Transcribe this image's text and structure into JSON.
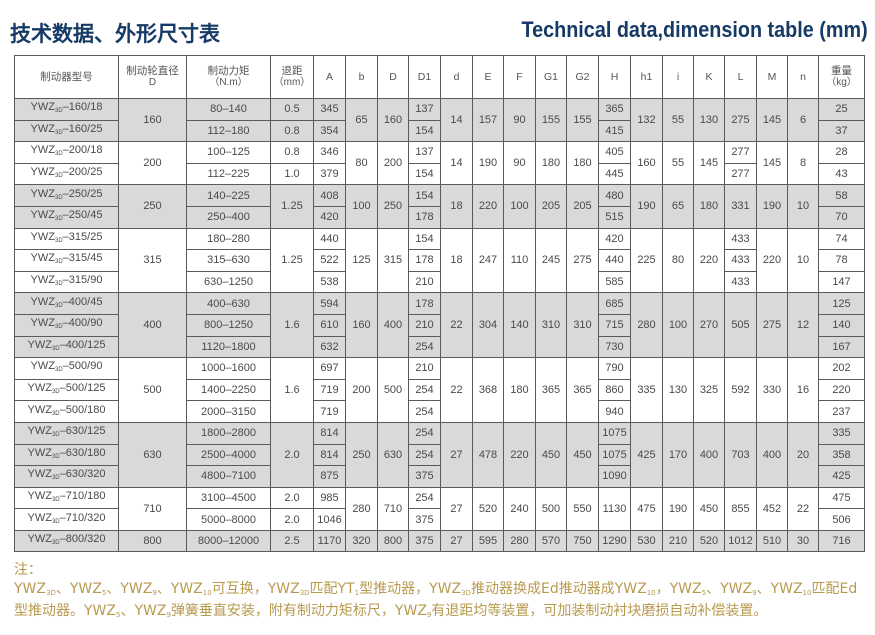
{
  "header": {
    "title_cn": "技术数据、外形尺寸表",
    "title_en": "Technical data,dimension table (mm)"
  },
  "table": {
    "columns": [
      {
        "key": "model",
        "label": "制动器型号",
        "label2": ""
      },
      {
        "key": "dia",
        "label": "制动轮直径",
        "label2": "D"
      },
      {
        "key": "torque",
        "label": "制动力矩",
        "label2": "（N.m）"
      },
      {
        "key": "gap",
        "label": "退距",
        "label2": "（mm）"
      },
      {
        "key": "A",
        "label": "A",
        "label2": ""
      },
      {
        "key": "b",
        "label": "b",
        "label2": ""
      },
      {
        "key": "D",
        "label": "D",
        "label2": ""
      },
      {
        "key": "D1",
        "label": "D1",
        "label2": ""
      },
      {
        "key": "d",
        "label": "d",
        "label2": ""
      },
      {
        "key": "E",
        "label": "E",
        "label2": ""
      },
      {
        "key": "F",
        "label": "F",
        "label2": ""
      },
      {
        "key": "G1",
        "label": "G1",
        "label2": ""
      },
      {
        "key": "G2",
        "label": "G2",
        "label2": ""
      },
      {
        "key": "H",
        "label": "H",
        "label2": ""
      },
      {
        "key": "h1",
        "label": "h1",
        "label2": ""
      },
      {
        "key": "i",
        "label": "i",
        "label2": ""
      },
      {
        "key": "K",
        "label": "K",
        "label2": ""
      },
      {
        "key": "L",
        "label": "L",
        "label2": ""
      },
      {
        "key": "M",
        "label": "M",
        "label2": ""
      },
      {
        "key": "n",
        "label": "n",
        "label2": ""
      },
      {
        "key": "wt",
        "label": "重量",
        "label2": "（kg）"
      }
    ],
    "series": {
      "name": "YWZ",
      "sub": "3D"
    },
    "shade_color": "#d9d9d9",
    "groups": [
      {
        "shaded": true,
        "model": [
          "–160/18",
          "–160/25"
        ],
        "dia": "160",
        "torque": [
          "80–140",
          "112–180"
        ],
        "gap": [
          "0.5",
          "0.8"
        ],
        "A": [
          "345",
          "354"
        ],
        "b": "65",
        "D": "160",
        "D1": [
          "137",
          "154"
        ],
        "d": "14",
        "E": "157",
        "F": "90",
        "G1": "155",
        "G2": "155",
        "H": [
          "365",
          "415"
        ],
        "h1": "132",
        "i": "55",
        "K": "130",
        "L": "275",
        "M": "145",
        "n": "6",
        "wt": [
          "25",
          "37"
        ]
      },
      {
        "shaded": false,
        "model": [
          "–200/18",
          "–200/25"
        ],
        "dia": "200",
        "torque": [
          "100–125",
          "112–225"
        ],
        "gap": [
          "0.8",
          "1.0"
        ],
        "A": [
          "346",
          "379"
        ],
        "b": "80",
        "D": "200",
        "D1": [
          "137",
          "154"
        ],
        "d": "14",
        "E": "190",
        "F": "90",
        "G1": "180",
        "G2": "180",
        "H": [
          "405",
          "445"
        ],
        "h1": "160",
        "i": "55",
        "K": "145",
        "L": [
          "277",
          "277"
        ],
        "M": "145",
        "n": "8",
        "wt": [
          "28",
          "43"
        ]
      },
      {
        "shaded": true,
        "model": [
          "–250/25",
          "–250/45"
        ],
        "dia": "250",
        "torque": [
          "140–225",
          "250–400"
        ],
        "gap": "1.25",
        "A": [
          "408",
          "420"
        ],
        "b": "100",
        "D": "250",
        "D1": [
          "154",
          "178"
        ],
        "d": "18",
        "E": "220",
        "F": "100",
        "G1": "205",
        "G2": "205",
        "H": [
          "480",
          "515"
        ],
        "h1": "190",
        "i": "65",
        "K": "180",
        "L": "331",
        "M": "190",
        "n": "10",
        "wt": [
          "58",
          "70"
        ]
      },
      {
        "shaded": false,
        "model": [
          "–315/25",
          "–315/45",
          "–315/90"
        ],
        "dia": "315",
        "torque": [
          "180–280",
          "315–630",
          "630–1250"
        ],
        "gap": "1.25",
        "A": [
          "440",
          "522",
          "538"
        ],
        "b": "125",
        "D": "315",
        "D1": [
          "154",
          "178",
          "210"
        ],
        "d": "18",
        "E": "247",
        "F": "110",
        "G1": "245",
        "G2": "275",
        "H": [
          "420",
          "440",
          "585"
        ],
        "h1": "225",
        "i": "80",
        "K": "220",
        "L": [
          "433",
          "433",
          "433"
        ],
        "M": "220",
        "n": "10",
        "wt": [
          "74",
          "78",
          "147"
        ]
      },
      {
        "shaded": true,
        "model": [
          "–400/45",
          "–400/90",
          "–400/125"
        ],
        "dia": "400",
        "torque": [
          "400–630",
          "800–1250",
          "1120–1800"
        ],
        "gap": "1.6",
        "A": [
          "594",
          "610",
          "632"
        ],
        "b": "160",
        "D": "400",
        "D1": [
          "178",
          "210",
          "254"
        ],
        "d": "22",
        "E": "304",
        "F": "140",
        "G1": "310",
        "G2": "310",
        "H": [
          "685",
          "715",
          "730"
        ],
        "h1": "280",
        "i": "100",
        "K": "270",
        "L": "505",
        "M": "275",
        "n": "12",
        "wt": [
          "125",
          "140",
          "167"
        ]
      },
      {
        "shaded": false,
        "model": [
          "–500/90",
          "–500/125",
          "–500/180"
        ],
        "dia": "500",
        "torque": [
          "1000–1600",
          "1400–2250",
          "2000–3150"
        ],
        "gap": "1.6",
        "A": [
          "697",
          "719",
          "719"
        ],
        "b": "200",
        "D": "500",
        "D1": [
          "210",
          "254",
          "254"
        ],
        "d": "22",
        "E": "368",
        "F": "180",
        "G1": "365",
        "G2": "365",
        "H": [
          "790",
          "860",
          "940"
        ],
        "h1": "335",
        "i": "130",
        "K": "325",
        "L": "592",
        "M": "330",
        "n": "16",
        "wt": [
          "202",
          "220",
          "237"
        ]
      },
      {
        "shaded": true,
        "model": [
          "–630/125",
          "–630/180",
          "–630/320"
        ],
        "dia": "630",
        "torque": [
          "1800–2800",
          "2500–4000",
          "4800–7100"
        ],
        "gap": "2.0",
        "A": [
          "814",
          "814",
          "875"
        ],
        "b": "250",
        "D": "630",
        "D1": [
          "254",
          "254",
          "375"
        ],
        "d": "27",
        "E": "478",
        "F": "220",
        "G1": "450",
        "G2": "450",
        "H": [
          "1075",
          "1075",
          "1090"
        ],
        "h1": "425",
        "i": "170",
        "K": "400",
        "L": "703",
        "M": "400",
        "n": "20",
        "wt": [
          "335",
          "358",
          "425"
        ]
      },
      {
        "shaded": false,
        "model": [
          "–710/180",
          "–710/320"
        ],
        "dia": "710",
        "torque": [
          "3100–4500",
          "5000–8000"
        ],
        "gap": [
          "2.0",
          "2.0"
        ],
        "A": [
          "985",
          "1046"
        ],
        "b": "280",
        "D": "710",
        "D1": [
          "254",
          "375"
        ],
        "d": "27",
        "E": "520",
        "F": "240",
        "G1": "500",
        "G2": "550",
        "H": "1130",
        "h1": "475",
        "i": "190",
        "K": "450",
        "L": "855",
        "M": "452",
        "n": "22",
        "wt": [
          "475",
          "506"
        ]
      },
      {
        "shaded": true,
        "model": [
          "–800/320"
        ],
        "dia": "800",
        "torque": [
          "8000–12000"
        ],
        "gap": [
          "2.5"
        ],
        "A": [
          "1170"
        ],
        "b": "320",
        "D": "800",
        "D1": [
          "375"
        ],
        "d": "27",
        "E": "595",
        "F": "280",
        "G1": "570",
        "G2": "750",
        "H": [
          "1290"
        ],
        "h1": "530",
        "i": "210",
        "K": "520",
        "L": "1012",
        "M": "510",
        "n": "30",
        "wt": [
          "716"
        ]
      }
    ]
  },
  "notes": {
    "color": "#b89a4e",
    "heading": "注：",
    "segments": [
      {
        "t": "YWZ"
      },
      {
        "s": "3D"
      },
      {
        "t": "、YWZ"
      },
      {
        "s": "5"
      },
      {
        "t": "、YWZ"
      },
      {
        "s": "9"
      },
      {
        "t": "、YWZ"
      },
      {
        "s": "10"
      },
      {
        "t": "可互换，YWZ"
      },
      {
        "s": "3D"
      },
      {
        "t": "匹配YT"
      },
      {
        "s": "1"
      },
      {
        "t": "型推动器，YWZ"
      },
      {
        "s": "3D"
      },
      {
        "t": "推动器换成Ed推动器成YWZ"
      },
      {
        "s": "10"
      },
      {
        "t": "，YWZ"
      },
      {
        "s": "5"
      },
      {
        "t": "、YWZ"
      },
      {
        "s": "9"
      },
      {
        "t": "、YWZ"
      },
      {
        "s": "10"
      },
      {
        "t": "匹配Ed型推动器。YWZ"
      },
      {
        "s": "5"
      },
      {
        "t": "、YWZ"
      },
      {
        "s": "9"
      },
      {
        "t": "弹簧垂直安装，附有制动力矩标尺，YWZ"
      },
      {
        "s": "9"
      },
      {
        "t": "有退距均等装置，可加装制动衬块磨损自动补偿装置。"
      }
    ]
  }
}
